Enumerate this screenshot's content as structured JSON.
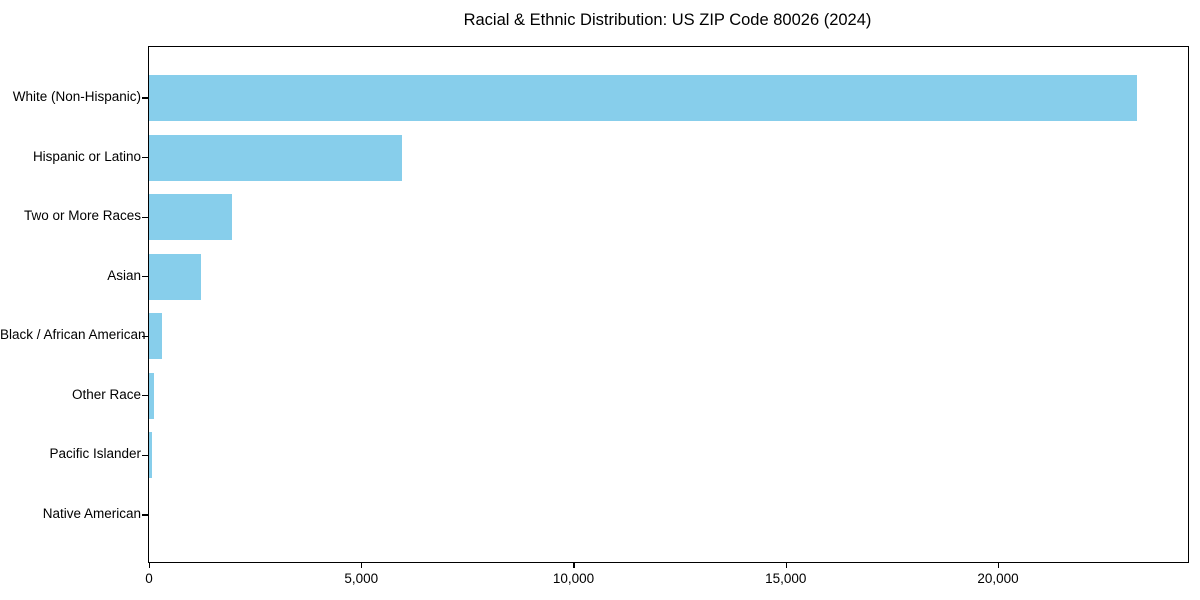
{
  "chart_data": {
    "type": "bar",
    "orientation": "horizontal",
    "title": "Racial & Ethnic Distribution: US ZIP Code 80026 (2024)",
    "categories": [
      "White (Non-Hispanic)",
      "Hispanic or Latino",
      "Two or More Races",
      "Asian",
      "Black / African American",
      "Other Race",
      "Pacific Islander",
      "Native American"
    ],
    "values": [
      23270,
      5950,
      1955,
      1220,
      300,
      115,
      65,
      0
    ],
    "xlabel": "",
    "ylabel": "",
    "xlim": [
      0,
      24476
    ],
    "xticks": [
      0,
      5000,
      10000,
      15000,
      20000
    ],
    "xtick_labels": [
      "0",
      "5,000",
      "10,000",
      "15,000",
      "20,000"
    ],
    "bar_color": "#87CEEB",
    "background_color": "#ffffff",
    "axis_color": "#000000",
    "grid": false,
    "legend": null
  }
}
